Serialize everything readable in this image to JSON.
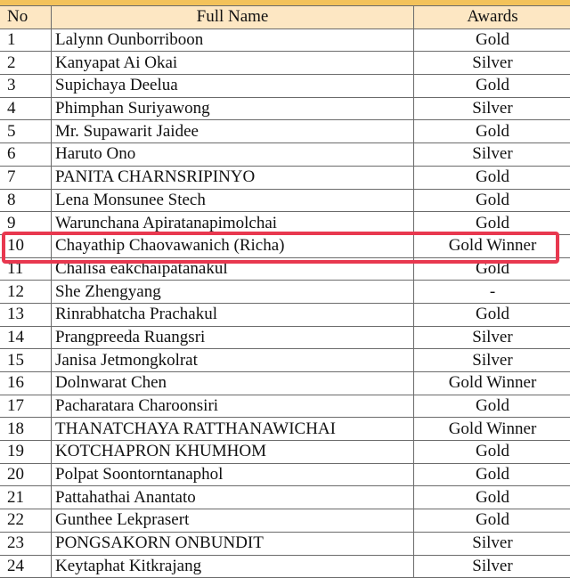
{
  "headers": {
    "no": "No",
    "name": "Full Name",
    "awards": "Awards"
  },
  "highlight_color": "#e8384f",
  "header_bg": "#fde7c3",
  "rows": [
    {
      "no": "1",
      "name": "Lalynn Ounborriboon",
      "award": "Gold"
    },
    {
      "no": "2",
      "name": "Kanyapat Ai Okai",
      "award": "Silver"
    },
    {
      "no": "3",
      "name": "Supichaya Deelua",
      "award": "Gold"
    },
    {
      "no": "4",
      "name": "Phimphan Suriyawong",
      "award": "Silver"
    },
    {
      "no": "5",
      "name": "Mr. Supawarit Jaidee",
      "award": "Gold"
    },
    {
      "no": "6",
      "name": "Haruto Ono",
      "award": "Silver"
    },
    {
      "no": "7",
      "name": "PANITA CHARNSRIPINYO",
      "award": "Gold"
    },
    {
      "no": "8",
      "name": "Lena Monsunee Stech",
      "award": "Gold"
    },
    {
      "no": "9",
      "name": "Warunchana Apiratanapimolchai",
      "award": "Gold"
    },
    {
      "no": "10",
      "name": "Chayathip Chaovawanich (Richa)",
      "award": "Gold Winner",
      "highlighted": true
    },
    {
      "no": "11",
      "name": "Chalisa eakchaipatanakul",
      "award": "Gold"
    },
    {
      "no": "12",
      "name": "She Zhengyang",
      "award": "-"
    },
    {
      "no": "13",
      "name": "Rinrabhatcha Prachakul",
      "award": "Gold"
    },
    {
      "no": "14",
      "name": "Prangpreeda Ruangsri",
      "award": "Silver"
    },
    {
      "no": "15",
      "name": "Janisa Jetmongkolrat",
      "award": "Silver"
    },
    {
      "no": "16",
      "name": "Dolnwarat Chen",
      "award": "Gold Winner"
    },
    {
      "no": "17",
      "name": "Pacharatara Charoonsiri",
      "award": "Gold"
    },
    {
      "no": "18",
      "name": "THANATCHAYA RATTHANAWICHAI",
      "award": "Gold Winner"
    },
    {
      "no": "19",
      "name": "KOTCHAPRON KHUMHOM",
      "award": "Gold"
    },
    {
      "no": "20",
      "name": "Polpat Soontorntanaphol",
      "award": "Gold"
    },
    {
      "no": "21",
      "name": "Pattahathai Anantato",
      "award": "Gold"
    },
    {
      "no": "22",
      "name": "Gunthee Lekprasert",
      "award": "Gold"
    },
    {
      "no": "23",
      "name": "PONGSAKORN ONBUNDIT",
      "award": "Silver"
    },
    {
      "no": "24",
      "name": "Keytaphat Kitkrajang",
      "award": "Silver"
    }
  ]
}
